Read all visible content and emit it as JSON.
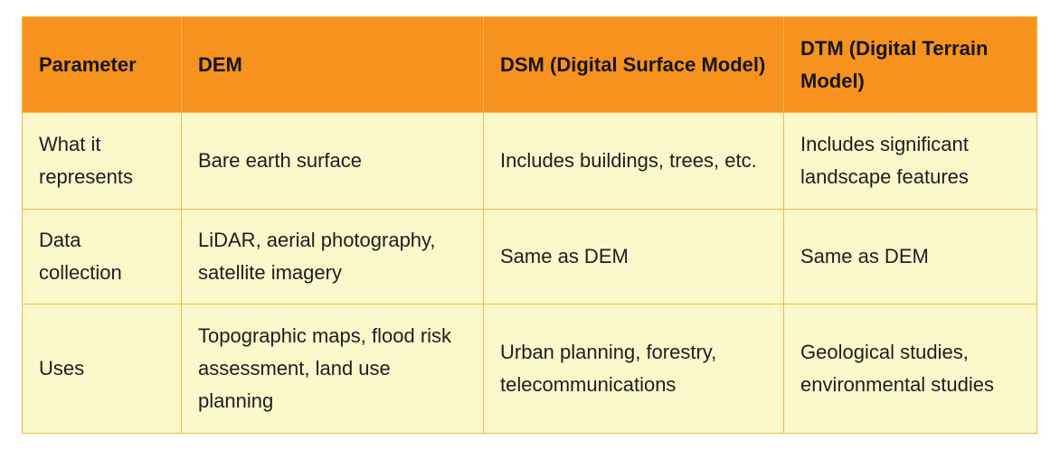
{
  "table": {
    "headers": [
      "Parameter",
      "DEM",
      "DSM (Digital Surface Model)",
      "DTM (Digital Terrain Model)"
    ],
    "rows": [
      [
        "What it represents",
        "Bare earth surface",
        "Includes buildings, trees, etc.",
        "Includes significant landscape features"
      ],
      [
        "Data collection",
        "LiDAR, aerial photography, satellite imagery",
        "Same as DEM",
        "Same as DEM"
      ],
      [
        "Uses",
        "Topographic maps, flood risk assessment, land use planning",
        "Urban planning, forestry, telecommunications",
        "Geological studies, environmental studies"
      ]
    ]
  },
  "colors": {
    "header_bg": "#f7921e",
    "cell_bg": "#fbf8cc",
    "border": "#f5b940"
  }
}
